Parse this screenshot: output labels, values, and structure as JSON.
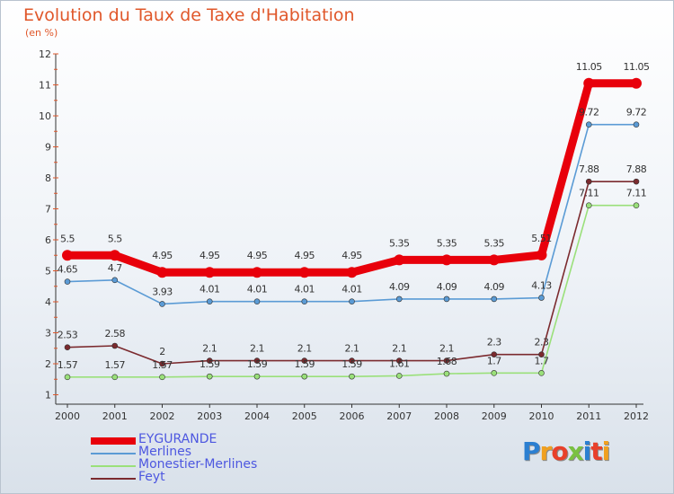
{
  "chart_data": {
    "type": "line",
    "title": "Evolution du Taux de Taxe d'Habitation",
    "subtitle": "(en %)",
    "xlabel": "",
    "ylabel": "",
    "ylim": [
      1,
      12
    ],
    "yticks": [
      "1",
      "2",
      "3",
      "4",
      "5",
      "6",
      "7",
      "8",
      "9",
      "10",
      "11",
      "12"
    ],
    "categories": [
      "2000",
      "2001",
      "2002",
      "2003",
      "2004",
      "2005",
      "2006",
      "2007",
      "2008",
      "2009",
      "2010",
      "2011",
      "2012"
    ],
    "series": [
      {
        "name": "EYGURANDE",
        "color": "#e8000b",
        "values": [
          5.5,
          5.5,
          4.95,
          4.95,
          4.95,
          4.95,
          4.95,
          5.35,
          5.35,
          5.35,
          5.51,
          11.05,
          11.05
        ],
        "labels": [
          "5.5",
          "5.5",
          "4.95",
          "4.95",
          "4.95",
          "4.95",
          "4.95",
          "5.35",
          "5.35",
          "5.35",
          "5.51",
          "11.05",
          "11.05"
        ]
      },
      {
        "name": "Merlines",
        "color": "#5b9bd5",
        "values": [
          4.65,
          4.7,
          3.93,
          4.01,
          4.01,
          4.01,
          4.01,
          4.09,
          4.09,
          4.09,
          4.13,
          9.72,
          9.72
        ],
        "labels": [
          "4.65",
          "4.7",
          "3.93",
          "4.01",
          "4.01",
          "4.01",
          "4.01",
          "4.09",
          "4.09",
          "4.09",
          "4.13",
          "9.72",
          "9.72"
        ]
      },
      {
        "name": "Monestier-Merlines",
        "color": "#9ae07a",
        "values": [
          1.57,
          1.57,
          1.57,
          1.59,
          1.59,
          1.59,
          1.59,
          1.61,
          1.68,
          1.7,
          1.7,
          7.11,
          7.11
        ],
        "labels": [
          "1.57",
          "1.57",
          "1.57",
          "1.59",
          "1.59",
          "1.59",
          "1.59",
          "1.61",
          "1.68",
          "1.7",
          "1.7",
          "7.11",
          "7.11"
        ]
      },
      {
        "name": "Feyt",
        "color": "#7b2a2e",
        "values": [
          2.53,
          2.58,
          2.0,
          2.1,
          2.1,
          2.1,
          2.1,
          2.1,
          2.1,
          2.3,
          2.3,
          7.88,
          7.88
        ],
        "labels": [
          "2.53",
          "2.58",
          "2",
          "2.1",
          "2.1",
          "2.1",
          "2.1",
          "2.1",
          "2.1",
          "2.3",
          "2.3",
          "7.88",
          "7.88"
        ]
      }
    ],
    "legend": "bottom-left"
  },
  "logo": {
    "text": "Proxiti",
    "letters": [
      "P",
      "r",
      "o",
      "x",
      "i",
      "t",
      "i"
    ],
    "colors": [
      "#2b7fd1",
      "#f0a020",
      "#e8402a",
      "#7ac142",
      "#2b7fd1",
      "#e8402a",
      "#f0a020"
    ]
  }
}
